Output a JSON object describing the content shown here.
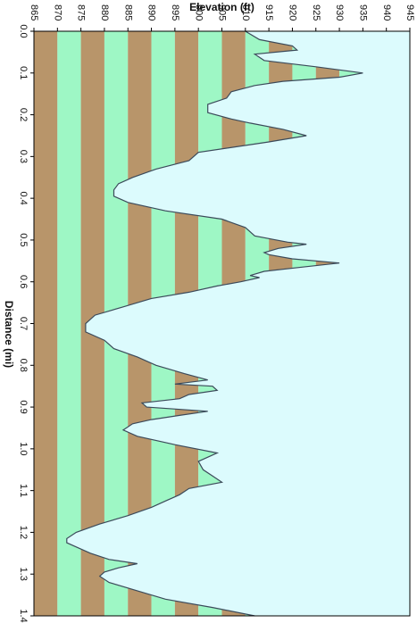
{
  "chart_data": {
    "type": "area",
    "title": "",
    "xlabel": "Distance  (mi)",
    "ylabel": "Elevation (ft)",
    "xlim": [
      0,
      1.4
    ],
    "ylim": [
      865,
      945
    ],
    "x_ticks": [
      "0.0",
      "0.1",
      "0.2",
      "0.3",
      "0.4",
      "0.5",
      "0.6",
      "0.7",
      "0.8",
      "0.9",
      "1.0",
      "1.1",
      "1.2",
      "1.3",
      "1.4"
    ],
    "y_ticks": [
      "865",
      "870",
      "875",
      "880",
      "885",
      "890",
      "895",
      "900",
      "905",
      "910",
      "915",
      "920",
      "925",
      "930",
      "935",
      "940",
      "945"
    ],
    "band_interval_ft": 5,
    "colors": {
      "sky": "#dcfbfd",
      "band_brown": "#b8956a",
      "band_green": "#9ef7c5",
      "profile_line": "#3b4a5a",
      "frame": "#000000"
    },
    "x": [
      0.0,
      0.02,
      0.035,
      0.045,
      0.055,
      0.07,
      0.085,
      0.1,
      0.11,
      0.12,
      0.13,
      0.145,
      0.16,
      0.175,
      0.195,
      0.21,
      0.22,
      0.235,
      0.25,
      0.265,
      0.28,
      0.29,
      0.31,
      0.33,
      0.35,
      0.365,
      0.38,
      0.395,
      0.41,
      0.43,
      0.45,
      0.47,
      0.49,
      0.505,
      0.51,
      0.52,
      0.53,
      0.535,
      0.545,
      0.555,
      0.565,
      0.575,
      0.585,
      0.59,
      0.6,
      0.61,
      0.625,
      0.64,
      0.66,
      0.68,
      0.7,
      0.72,
      0.74,
      0.76,
      0.78,
      0.8,
      0.82,
      0.835,
      0.845,
      0.85,
      0.86,
      0.87,
      0.88,
      0.89,
      0.9,
      0.91,
      0.92,
      0.93,
      0.94,
      0.955,
      0.97,
      0.99,
      1.01,
      1.03,
      1.05,
      1.065,
      1.08,
      1.095,
      1.11,
      1.125,
      1.14,
      1.16,
      1.18,
      1.2,
      1.215,
      1.225,
      1.235,
      1.25,
      1.265,
      1.275,
      1.285,
      1.295,
      1.305,
      1.32,
      1.34,
      1.36,
      1.38,
      1.4
    ],
    "values": [
      910,
      913,
      920,
      921,
      912,
      914,
      925,
      935,
      930,
      918,
      912,
      907,
      906,
      902,
      902,
      907,
      911,
      918,
      923,
      915,
      906,
      900,
      898,
      891,
      886,
      883,
      882,
      882,
      885,
      893,
      905,
      910,
      912,
      919,
      923,
      917,
      914,
      915,
      920,
      930,
      922,
      914,
      911,
      913,
      909,
      904,
      898,
      890,
      884,
      878,
      876,
      876,
      880,
      882,
      887,
      891,
      897,
      902,
      895,
      903,
      904,
      898,
      896,
      888,
      889,
      902,
      896,
      890,
      886,
      884,
      887,
      895,
      904,
      900,
      901,
      903,
      905,
      898,
      896,
      893,
      890,
      885,
      879,
      874,
      872,
      872,
      874,
      877,
      881,
      887,
      883,
      880,
      879,
      881,
      887,
      893,
      903,
      912
    ]
  }
}
